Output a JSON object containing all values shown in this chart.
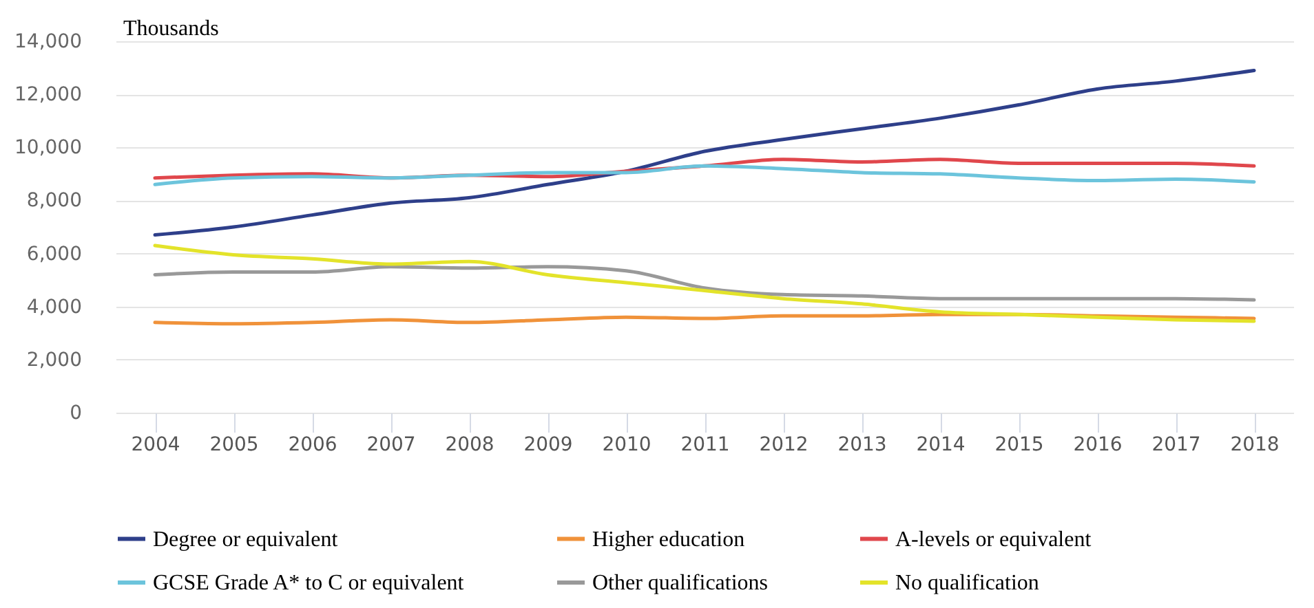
{
  "chart_data": {
    "type": "line",
    "ylabel": "Thousands",
    "categories": [
      "2004",
      "2005",
      "2006",
      "2007",
      "2008",
      "2009",
      "2010",
      "2011",
      "2012",
      "2013",
      "2014",
      "2015",
      "2016",
      "2017",
      "2018"
    ],
    "series": [
      {
        "name": "Degree or equivalent",
        "color": "#2e3f8a",
        "values": [
          6700,
          7000,
          7450,
          7900,
          8100,
          8600,
          9100,
          9850,
          10300,
          10700,
          11100,
          11600,
          12200,
          12500,
          12900
        ]
      },
      {
        "name": "Higher education",
        "color": "#f0923a",
        "values": [
          3400,
          3350,
          3400,
          3500,
          3400,
          3500,
          3600,
          3550,
          3650,
          3650,
          3700,
          3700,
          3650,
          3600,
          3550
        ]
      },
      {
        "name": "A-levels or equivalent",
        "color": "#e0474c",
        "values": [
          8850,
          8950,
          9000,
          8850,
          8950,
          8900,
          9100,
          9300,
          9550,
          9450,
          9550,
          9400,
          9400,
          9400,
          9300
        ]
      },
      {
        "name": "GCSE Grade A* to C or equivalent",
        "color": "#6cc4dc",
        "values": [
          8600,
          8850,
          8900,
          8850,
          8950,
          9050,
          9050,
          9300,
          9200,
          9050,
          9000,
          8850,
          8750,
          8800,
          8700
        ]
      },
      {
        "name": "Other qualifications",
        "color": "#999999",
        "values": [
          5200,
          5300,
          5300,
          5500,
          5450,
          5500,
          5350,
          4700,
          4450,
          4400,
          4300,
          4300,
          4300,
          4300,
          4250
        ]
      },
      {
        "name": "No qualification",
        "color": "#e3e32a",
        "values": [
          6300,
          5950,
          5800,
          5600,
          5700,
          5200,
          4900,
          4600,
          4300,
          4100,
          3800,
          3700,
          3600,
          3500,
          3450
        ]
      }
    ],
    "ylim": [
      0,
      14000
    ],
    "yticks": [
      0,
      {
        "value": 2000,
        "label": "2,000"
      },
      {
        "value": 4000,
        "label": "4,000"
      },
      {
        "value": 6000,
        "label": "6,000"
      },
      {
        "value": 8000,
        "label": "8,000"
      },
      {
        "value": 10000,
        "label": "10,000"
      },
      {
        "value": 12000,
        "label": "12,000"
      },
      {
        "value": 14000,
        "label": "14,000"
      }
    ],
    "grid": "y",
    "legend": "bottom"
  }
}
